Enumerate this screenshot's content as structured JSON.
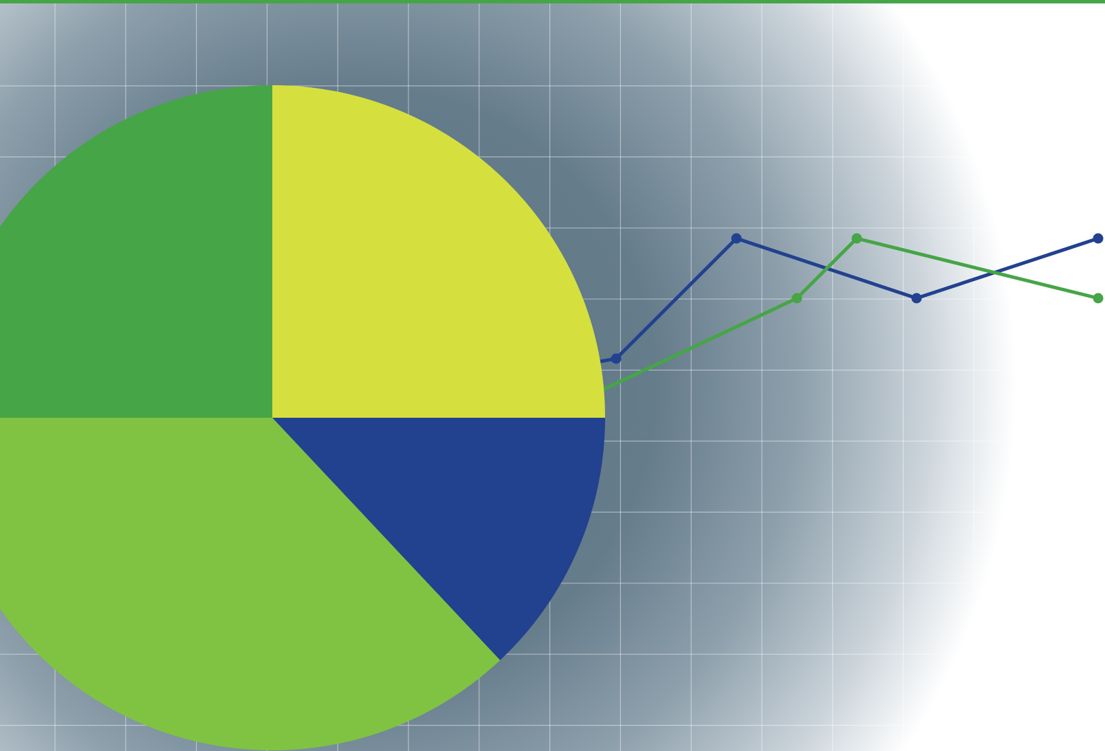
{
  "colors": {
    "top_bar": "#46A546",
    "background_dark": "#627988",
    "background_light": "#ffffff",
    "grid": "#ffffff",
    "pie_dark_green": "#46A546",
    "pie_yellow_green": "#D5E03E",
    "pie_light_green": "#80C342",
    "pie_navy": "#22418F",
    "line_navy": "#22418F",
    "line_green": "#46A546"
  },
  "chart_data": [
    {
      "type": "pie",
      "title": "",
      "slices": [
        {
          "value": 25,
          "color": "#D5E03E"
        },
        {
          "value": 13,
          "color": "#22418F"
        },
        {
          "value": 37,
          "color": "#80C342"
        },
        {
          "value": 25,
          "color": "#46A546"
        }
      ],
      "labels_shown": false,
      "legend": "none"
    },
    {
      "type": "line",
      "title": "",
      "xlabel": "",
      "ylabel": "",
      "x": [
        1,
        2,
        3,
        4,
        5,
        6,
        7,
        8,
        9,
        10,
        11,
        12
      ],
      "xlim": [
        1,
        12
      ],
      "ylim": [
        0,
        10
      ],
      "grid": true,
      "axes_labels_shown": false,
      "legend": "none",
      "series": [
        {
          "color": "#22418F",
          "values": [
            null,
            null,
            null,
            null,
            null,
            null,
            5.0,
            7.0,
            null,
            6.0,
            null,
            7.0
          ]
        },
        {
          "color": "#46A546",
          "values": [
            null,
            null,
            null,
            null,
            null,
            null,
            null,
            null,
            6.0,
            7.0,
            null,
            6.0
          ]
        }
      ]
    }
  ]
}
